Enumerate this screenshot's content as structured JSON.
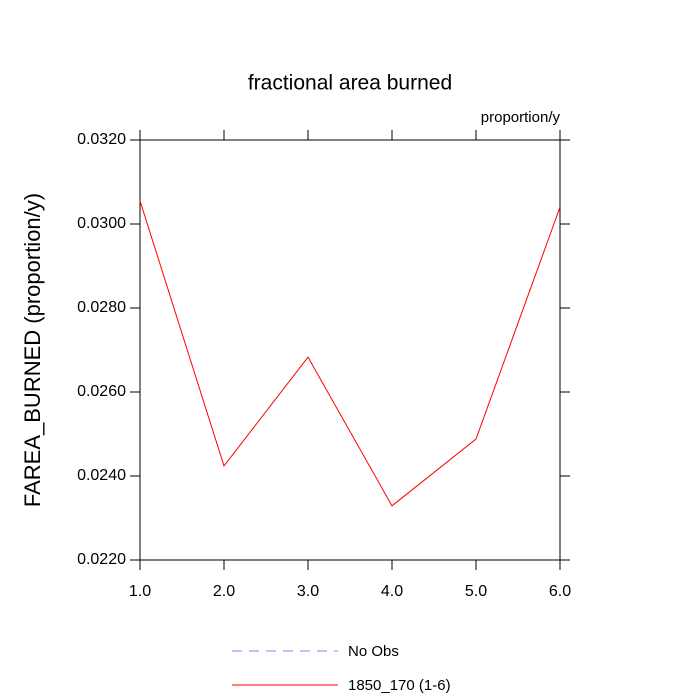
{
  "chart_data": {
    "type": "line",
    "title": "fractional area burned",
    "units": "proportion/y",
    "ylabel": "FAREA_BURNED  (proportion/y)",
    "x": [
      1,
      2,
      3,
      4,
      5,
      6
    ],
    "series": [
      {
        "name": "No Obs",
        "color": "#8080ff",
        "dashed": true,
        "values": [
          null,
          null,
          null,
          null,
          null,
          null
        ]
      },
      {
        "name": "1850_170 (1-6)",
        "color": "#ff0000",
        "dashed": false,
        "values": [
          0.03055,
          0.02424,
          0.02683,
          0.02329,
          0.02488,
          0.0304
        ]
      }
    ],
    "xlim": [
      1,
      6
    ],
    "xticks": [
      {
        "value": 1,
        "label": "1.0"
      },
      {
        "value": 2,
        "label": "2.0"
      },
      {
        "value": 3,
        "label": "3.0"
      },
      {
        "value": 4,
        "label": "4.0"
      },
      {
        "value": 5,
        "label": "5.0"
      },
      {
        "value": 6,
        "label": "6.0"
      }
    ],
    "ylim": [
      0.022,
      0.032
    ],
    "yticks": [
      {
        "value": 0.022,
        "label": "0.0220"
      },
      {
        "value": 0.024,
        "label": "0.0240"
      },
      {
        "value": 0.026,
        "label": "0.0260"
      },
      {
        "value": 0.028,
        "label": "0.0280"
      },
      {
        "value": 0.03,
        "label": "0.0300"
      },
      {
        "value": 0.032,
        "label": "0.0320"
      }
    ],
    "grid": false,
    "legend": "bottom"
  }
}
